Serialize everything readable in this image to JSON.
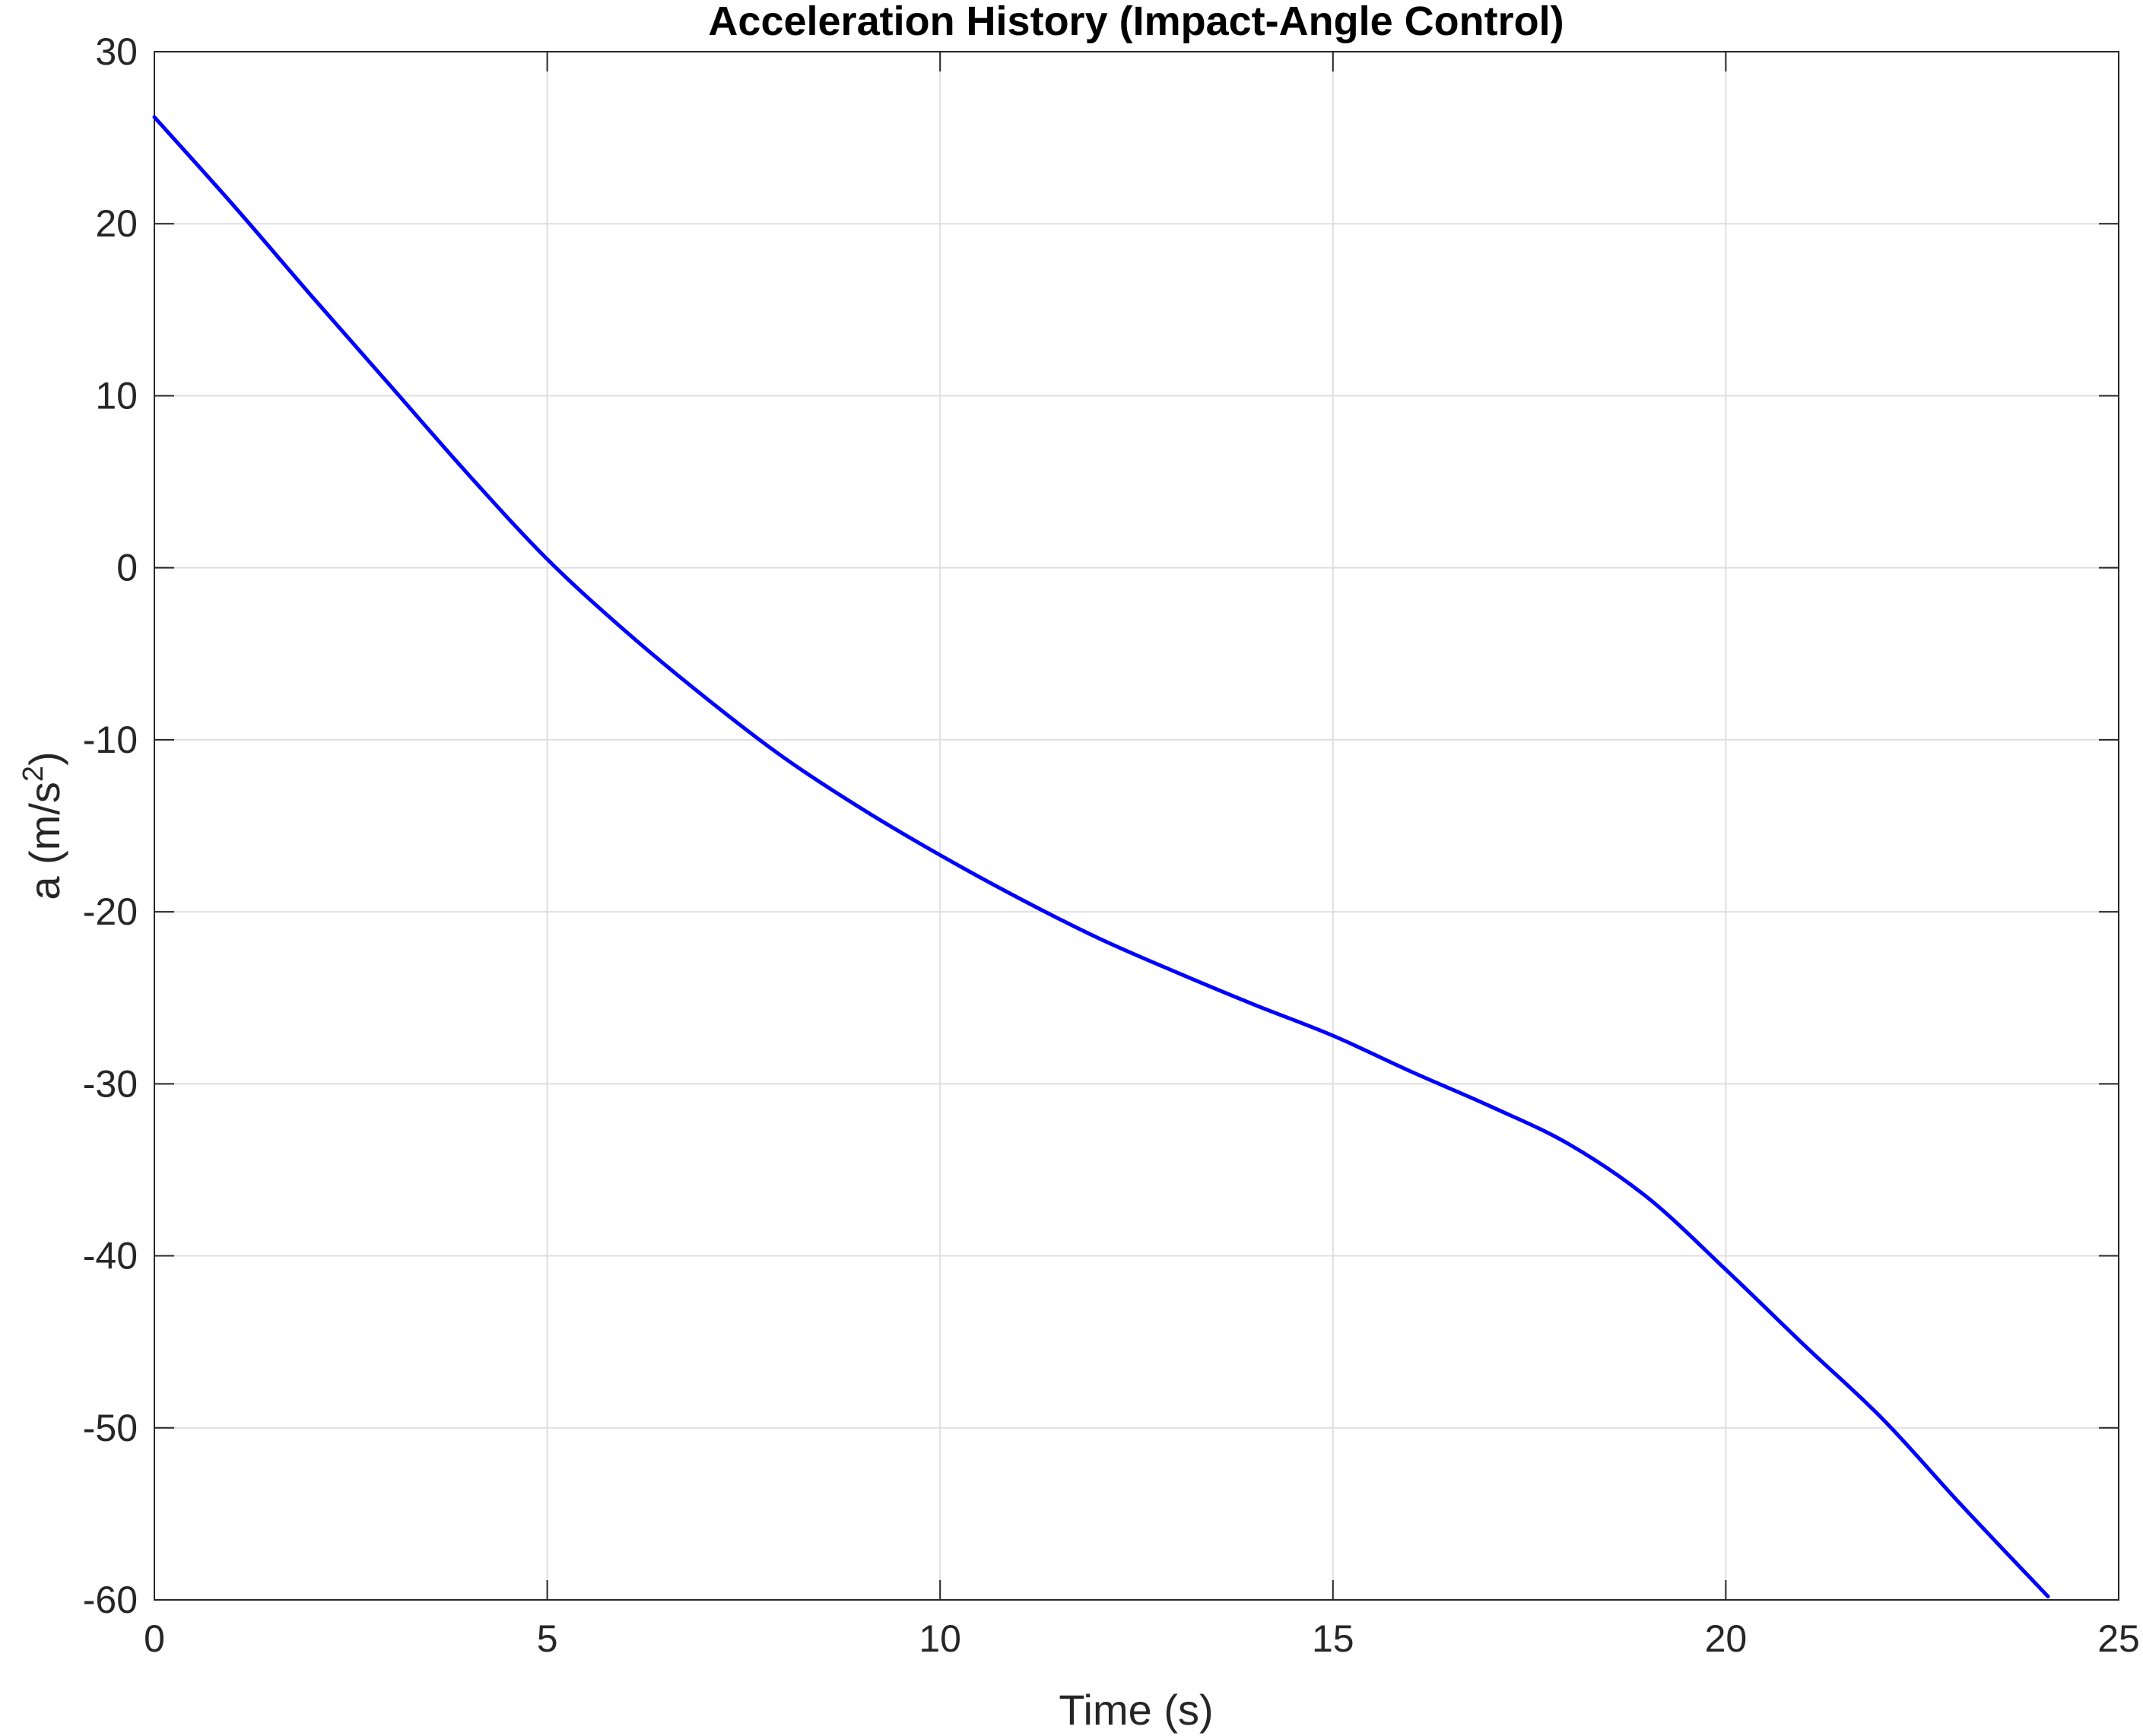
{
  "chart_data": {
    "type": "line",
    "title": "Acceleration History (Impact-Angle Control)",
    "xlabel": "Time (s)",
    "ylabel": {
      "base": "a (m/s",
      "superscript": "2",
      "suffix": ")"
    },
    "xlim": [
      0,
      25
    ],
    "ylim": [
      -60,
      30
    ],
    "xticks": [
      0,
      5,
      10,
      15,
      20,
      25
    ],
    "yticks": [
      30,
      20,
      10,
      0,
      -10,
      -20,
      -30,
      -40,
      -50,
      -60
    ],
    "grid": true,
    "line_color": "#0000ff",
    "series": [
      {
        "x": [
          0,
          1,
          2,
          3,
          4,
          5,
          6,
          7,
          8,
          9,
          10,
          11,
          12,
          13,
          14,
          15,
          16,
          17,
          18,
          19,
          20,
          21,
          22,
          23,
          24.1
        ],
        "y": [
          26.2,
          21.1,
          15.8,
          10.6,
          5.4,
          0.5,
          -3.7,
          -7.5,
          -11.0,
          -14.0,
          -16.7,
          -19.2,
          -21.5,
          -23.5,
          -25.4,
          -27.2,
          -29.3,
          -31.3,
          -33.5,
          -36.6,
          -40.8,
          -45.2,
          -49.5,
          -54.5,
          -59.8
        ]
      }
    ]
  }
}
